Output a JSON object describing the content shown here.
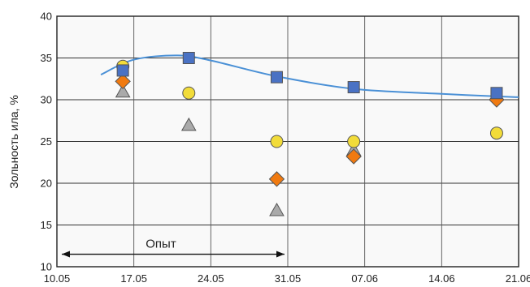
{
  "chart_data": {
    "type": "scatter",
    "title": "",
    "xlabel": "",
    "ylabel": "Зольность ила, %",
    "x_ticks": [
      "10.05",
      "17.05",
      "24.05",
      "31.05",
      "07.06",
      "14.06",
      "21.06"
    ],
    "y_ticks": [
      "10",
      "15",
      "20",
      "25",
      "30",
      "35",
      "40"
    ],
    "xlim": [
      "10.05",
      "21.06"
    ],
    "ylim": [
      10,
      40
    ],
    "grid": true,
    "legend": "none",
    "annotations": [
      {
        "text": "Опыт",
        "from": "10.05",
        "to": "31.05",
        "y": 11.5
      }
    ],
    "series": [
      {
        "marker": "square",
        "color": "#4a72c4",
        "points": [
          {
            "x": "16.05",
            "y": 33.5
          },
          {
            "x": "22.05",
            "y": 35.0
          },
          {
            "x": "30.05",
            "y": 32.7
          },
          {
            "x": "06.06",
            "y": 31.5
          },
          {
            "x": "19.06",
            "y": 30.8
          }
        ]
      },
      {
        "marker": "circle",
        "color": "#f2dc3a",
        "points": [
          {
            "x": "16.05",
            "y": 34.0
          },
          {
            "x": "22.05",
            "y": 30.8
          },
          {
            "x": "30.05",
            "y": 25.0
          },
          {
            "x": "06.06",
            "y": 25.0
          },
          {
            "x": "19.06",
            "y": 26.0
          }
        ]
      },
      {
        "marker": "diamond",
        "color": "#f07a10",
        "points": [
          {
            "x": "16.05",
            "y": 32.2
          },
          {
            "x": "30.05",
            "y": 20.5
          },
          {
            "x": "06.06",
            "y": 23.2
          },
          {
            "x": "19.06",
            "y": 30.0
          }
        ]
      },
      {
        "marker": "triangle",
        "color": "#aaaaaa",
        "points": [
          {
            "x": "16.05",
            "y": 31.0
          },
          {
            "x": "22.05",
            "y": 27.0
          },
          {
            "x": "30.05",
            "y": 16.8
          },
          {
            "x": "06.06",
            "y": 24.0
          }
        ]
      }
    ],
    "trendline": {
      "color": "#4a90d6",
      "points": [
        {
          "x": "14.05",
          "y": 33.0
        },
        {
          "x": "17.05",
          "y": 34.8
        },
        {
          "x": "21.05",
          "y": 35.3
        },
        {
          "x": "24.05",
          "y": 34.7
        },
        {
          "x": "30.05",
          "y": 32.8
        },
        {
          "x": "06.06",
          "y": 31.3
        },
        {
          "x": "14.06",
          "y": 30.7
        },
        {
          "x": "21.06",
          "y": 30.3
        }
      ]
    }
  }
}
